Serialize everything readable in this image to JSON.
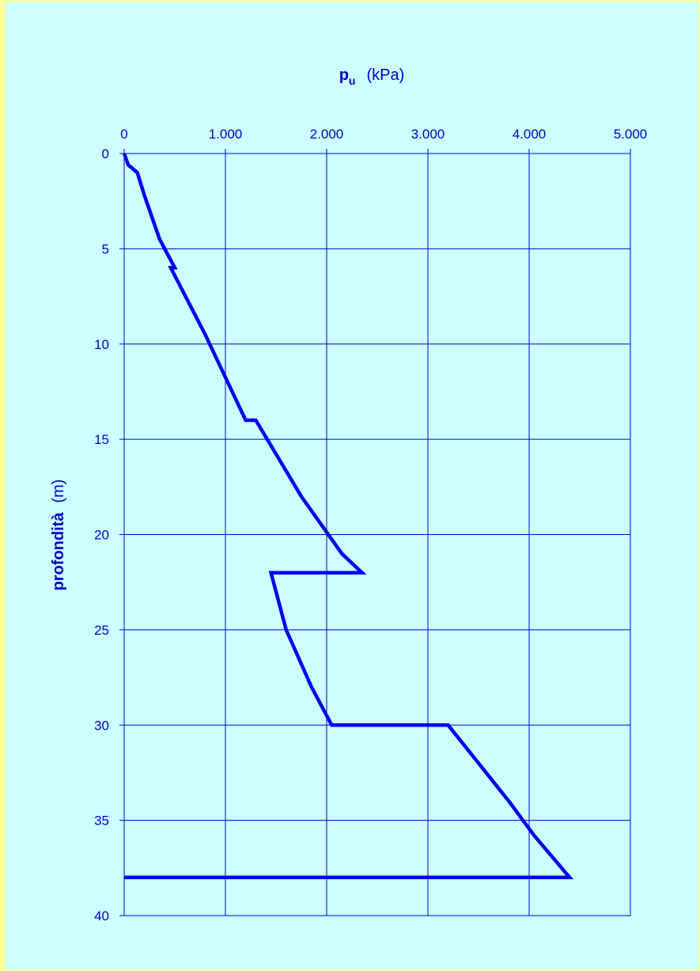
{
  "colors": {
    "background_outer": "#ffff99",
    "background_inner": "#ccffff",
    "grid": "#0000cc",
    "text": "#0000cc",
    "series": "#0000ee"
  },
  "chart_data": {
    "type": "line",
    "x_axis": {
      "label_main": "p",
      "label_sub": "u",
      "label_unit": "(kPa)",
      "position": "top",
      "range": [
        0,
        5000
      ],
      "ticks": [
        0,
        1000,
        2000,
        3000,
        4000,
        5000
      ],
      "tick_labels": [
        "0",
        "1.000",
        "2.000",
        "3.000",
        "4.000",
        "5.000"
      ],
      "grid": true
    },
    "y_axis": {
      "label_main": "profondità",
      "label_unit": "(m)",
      "range": [
        0,
        40
      ],
      "inverted": true,
      "ticks": [
        0,
        5,
        10,
        15,
        20,
        25,
        30,
        35,
        40
      ],
      "tick_labels": [
        "0",
        "5",
        "10",
        "15",
        "20",
        "25",
        "30",
        "35",
        "40"
      ],
      "grid": true
    },
    "series": [
      {
        "x": [
          0,
          40,
          130,
          200,
          350,
          500,
          460,
          800,
          1200,
          1300,
          1750,
          2150,
          2350,
          1450,
          1600,
          1850,
          2050,
          3200,
          3500,
          3800,
          4050,
          4400,
          0
        ],
        "y": [
          0,
          0.6,
          1.0,
          2.2,
          4.5,
          6.0,
          6.0,
          9.5,
          14.0,
          14.0,
          18.0,
          21.0,
          22.0,
          22.0,
          25.0,
          28.0,
          30.0,
          30.0,
          32.0,
          34.0,
          35.8,
          38.0,
          38.0
        ]
      }
    ]
  }
}
